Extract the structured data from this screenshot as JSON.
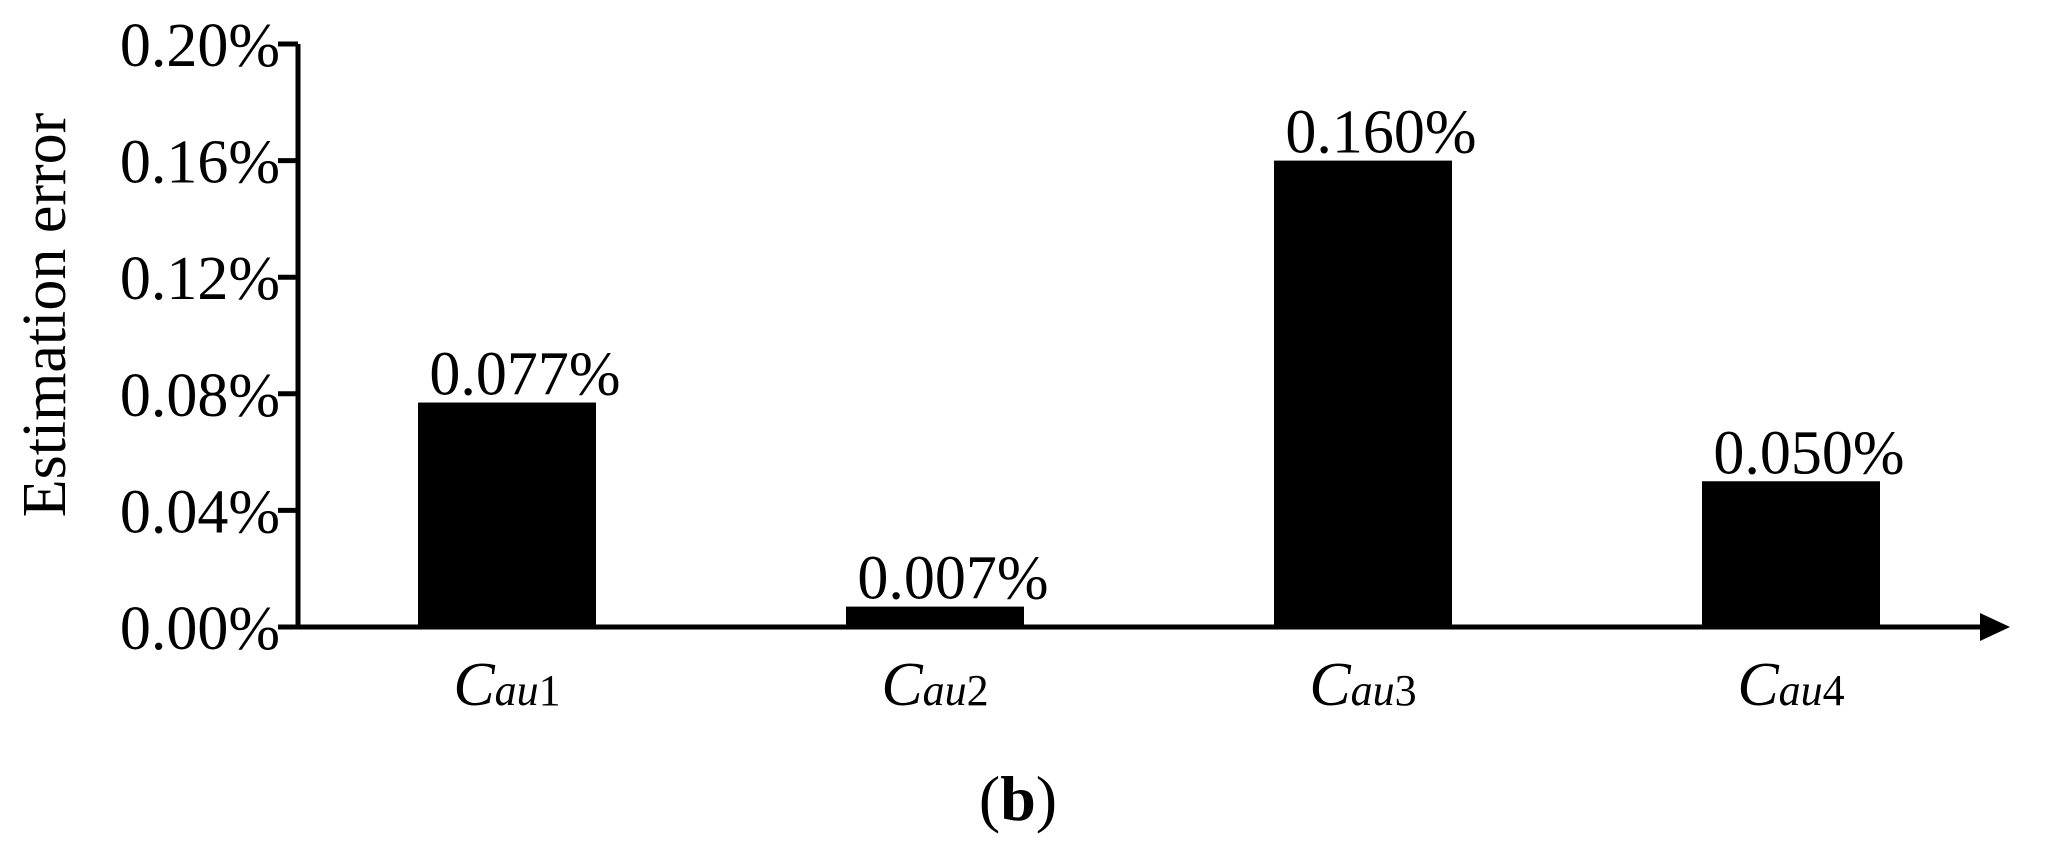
{
  "chart_data": {
    "type": "bar",
    "categories": [
      {
        "main": "C",
        "sub": "au",
        "num": "1"
      },
      {
        "main": "C",
        "sub": "au",
        "num": "2"
      },
      {
        "main": "C",
        "sub": "au",
        "num": "3"
      },
      {
        "main": "C",
        "sub": "au",
        "num": "4"
      }
    ],
    "values": [
      0.077,
      0.007,
      0.16,
      0.05
    ],
    "data_labels": [
      "0.077%",
      "0.007%",
      "0.160%",
      "0.050%"
    ],
    "ylabel": "Estimation error",
    "ylim": [
      0,
      0.2
    ],
    "yticks": [
      0.0,
      0.04,
      0.08,
      0.12,
      0.16,
      0.2
    ],
    "ytick_labels": [
      "0.00%",
      "0.04%",
      "0.08%",
      "0.12%",
      "0.16%",
      "0.20%"
    ],
    "grid": false,
    "legend": "none",
    "bar_color": "#000000",
    "panel_label": {
      "open": "(",
      "letter": "b",
      "close": ")"
    }
  }
}
